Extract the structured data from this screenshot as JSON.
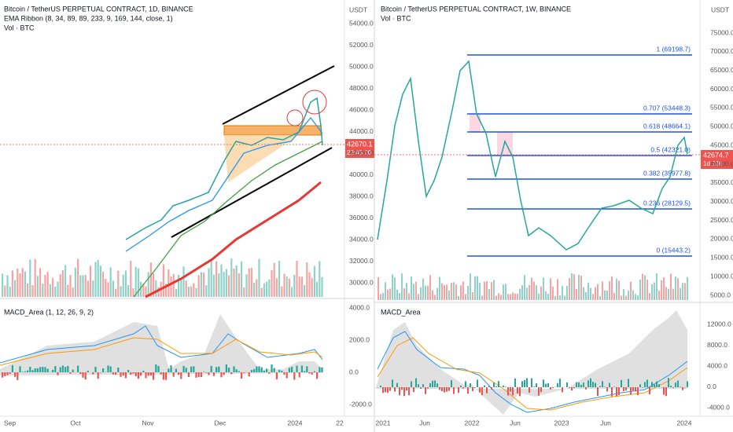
{
  "left": {
    "header": [
      "Bitcoin / TetherUS PERPETUAL CONTRACT, 1D, BINANCE",
      "EMA Ribbon (8, 34, 89, 89, 233, 9, 169, 144, close, 1)",
      "Vol · BTC"
    ],
    "currency": "USDT",
    "price_axis": [
      "54000.0",
      "52000.0",
      "50000.0",
      "48000.0",
      "46000.0",
      "44000.0",
      "42000.0",
      "40000.0",
      "38000.0",
      "36000.0",
      "34000.0",
      "32000.0",
      "30000.0"
    ],
    "price_tag": "42670.1",
    "countdown": "22:45:00",
    "macd_title": "MACD_Area (1, 12, 26, 9, 2)",
    "macd_axis": [
      "4000.0",
      "2000.0",
      "0.0",
      "-2000.0"
    ],
    "time_axis": [
      "Sep",
      "Oct",
      "Nov",
      "Dec",
      "2024",
      "22"
    ]
  },
  "right": {
    "header": [
      "Bitcoin / TetherUS PERPETUAL CONTRACT, 1W, BINANCE",
      "Vol · BTC"
    ],
    "currency": "USDT",
    "price_axis": [
      "75000.0",
      "70000.0",
      "65000.0",
      "60000.0",
      "55000.0",
      "50000.0",
      "45000.0",
      "40000.0",
      "35000.0",
      "30000.0",
      "25000.0",
      "20000.0",
      "15000.0",
      "10000.0",
      "5000.0"
    ],
    "price_tag": "42674.7",
    "countdown": "1d 23h",
    "fib_labels": [
      "1 (69198.7)",
      "0.707 (53448.3)",
      "0.618 (48664.1)",
      "0.5 (42321.0)",
      "0.382 (35977.8)",
      "0.236 (28129.5)",
      "0 (15443.2)"
    ],
    "macd_title": "MACD_Area",
    "macd_axis": [
      "12000.0",
      "8000.0",
      "4000.0",
      "0.0",
      "-4000.0"
    ],
    "time_axis": [
      "2021",
      "Jun",
      "2022",
      "Jun",
      "2023",
      "Jun",
      "2024"
    ]
  }
}
